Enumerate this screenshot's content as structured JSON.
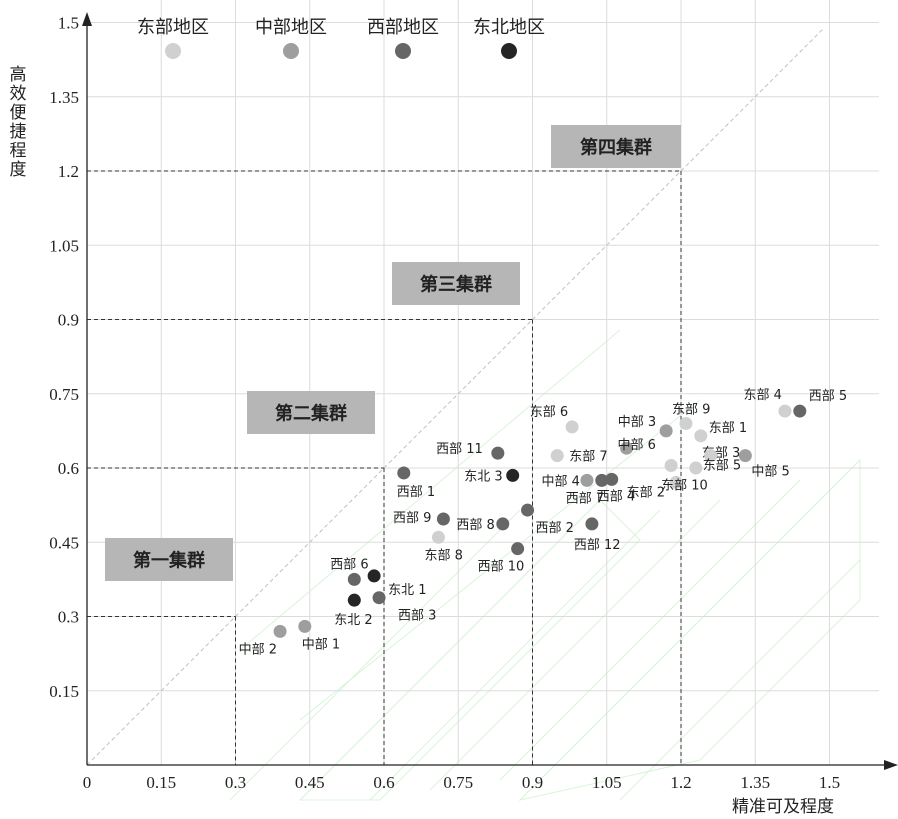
{
  "chart_data": {
    "type": "scatter",
    "xlabel": "精准可及程度",
    "ylabel": "高效便捷程度",
    "xlim": [
      0,
      1.6
    ],
    "ylim": [
      0,
      1.6
    ],
    "xticks": [
      "0",
      "0.15",
      "0.3",
      "0.45",
      "0.6",
      "0.75",
      "0.9",
      "1.05",
      "1.2",
      "1.35",
      "1.5"
    ],
    "yticks": [
      "0.15",
      "0.3",
      "0.45",
      "0.6",
      "0.75",
      "0.9",
      "1.05",
      "1.2",
      "1.35",
      "1.5"
    ],
    "grid": true,
    "diagonal_reference": true,
    "legend_position": "top",
    "series": [
      {
        "name": "东部地区",
        "color": "#d0d0d0",
        "points": [
          {
            "label": "东部 1",
            "x": 1.24,
            "y": 0.665
          },
          {
            "label": "东部 2",
            "x": 1.19,
            "y": 0.571
          },
          {
            "label": "东部 3",
            "x": 1.23,
            "y": 0.6
          },
          {
            "label": "东部 4",
            "x": 1.41,
            "y": 0.715
          },
          {
            "label": "东部 5",
            "x": 1.26,
            "y": 0.625
          },
          {
            "label": "东部 6",
            "x": 0.98,
            "y": 0.683
          },
          {
            "label": "东部 7",
            "x": 0.95,
            "y": 0.625
          },
          {
            "label": "东部 8",
            "x": 0.71,
            "y": 0.46
          },
          {
            "label": "东部 9",
            "x": 1.21,
            "y": 0.69
          },
          {
            "label": "东部 10",
            "x": 1.18,
            "y": 0.605
          }
        ]
      },
      {
        "name": "中部地区",
        "color": "#9e9e9e",
        "points": [
          {
            "label": "中部 1",
            "x": 0.44,
            "y": 0.28
          },
          {
            "label": "中部 2",
            "x": 0.39,
            "y": 0.27
          },
          {
            "label": "中部 3",
            "x": 1.17,
            "y": 0.675
          },
          {
            "label": "中部 4",
            "x": 1.01,
            "y": 0.575
          },
          {
            "label": "中部 5",
            "x": 1.33,
            "y": 0.625
          },
          {
            "label": "中部 6",
            "x": 1.09,
            "y": 0.64
          }
        ]
      },
      {
        "name": "西部地区",
        "color": "#666666",
        "points": [
          {
            "label": "西部 1",
            "x": 0.64,
            "y": 0.59
          },
          {
            "label": "西部 2",
            "x": 0.89,
            "y": 0.515
          },
          {
            "label": "西部 3",
            "x": 0.59,
            "y": 0.338
          },
          {
            "label": "西部 4",
            "x": 1.06,
            "y": 0.577
          },
          {
            "label": "西部 5",
            "x": 1.44,
            "y": 0.715
          },
          {
            "label": "西部 6",
            "x": 0.54,
            "y": 0.375
          },
          {
            "label": "西部 7",
            "x": 1.04,
            "y": 0.575
          },
          {
            "label": "西部 8",
            "x": 0.84,
            "y": 0.487
          },
          {
            "label": "西部 9",
            "x": 0.72,
            "y": 0.497
          },
          {
            "label": "西部 10",
            "x": 0.87,
            "y": 0.437
          },
          {
            "label": "西部 11",
            "x": 0.83,
            "y": 0.63
          },
          {
            "label": "西部 12",
            "x": 1.02,
            "y": 0.487
          }
        ]
      },
      {
        "name": "东北地区",
        "color": "#252525",
        "points": [
          {
            "label": "东北 1",
            "x": 0.58,
            "y": 0.382
          },
          {
            "label": "东北 2",
            "x": 0.54,
            "y": 0.333
          },
          {
            "label": "东北 3",
            "x": 0.86,
            "y": 0.585
          }
        ]
      }
    ],
    "clusters": [
      {
        "label": "第一集群",
        "bound": 0.3
      },
      {
        "label": "第二集群",
        "bound": 0.6
      },
      {
        "label": "第三集群",
        "bound": 0.9
      },
      {
        "label": "第四集群",
        "bound": 1.2
      }
    ]
  }
}
